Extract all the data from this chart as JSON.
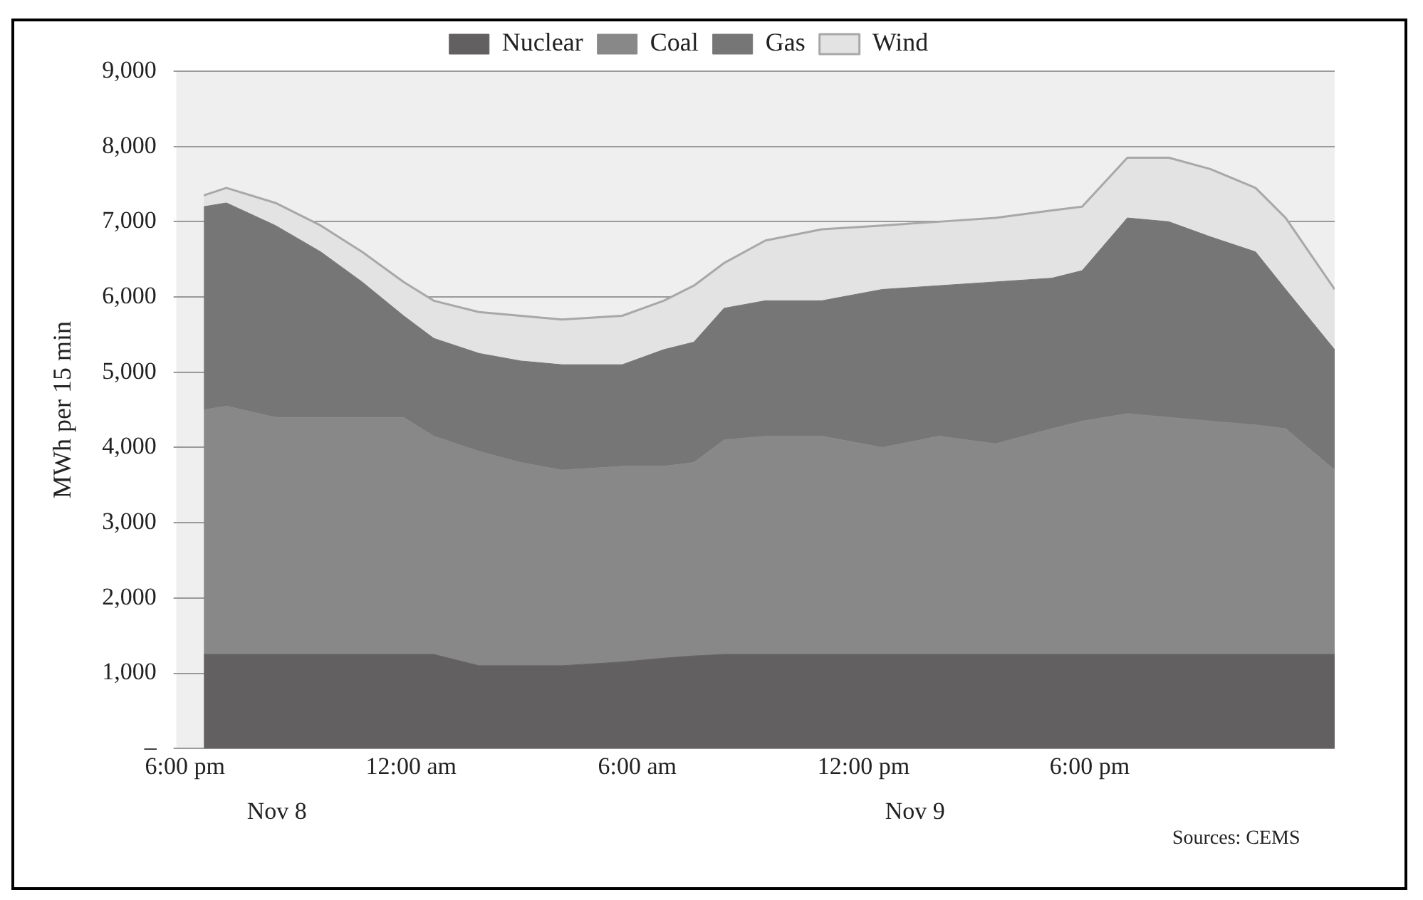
{
  "chart_data": {
    "type": "area",
    "ylabel": "MWh per 15 min",
    "stacked": true,
    "grid": "y",
    "legend": "top",
    "x": [
      "--11-08T18:30",
      "--11-08T19:06",
      "--11-08T20:24",
      "--11-08T21:36",
      "--11-08T22:42",
      "--11-08T23:48",
      "--11-09T00:36",
      "--11-09T01:48",
      "--11-09T02:54",
      "--11-09T04:00",
      "--11-09T05:36",
      "--11-09T06:42",
      "--11-09T07:30",
      "--11-09T08:18",
      "--11-09T09:24",
      "--11-09T10:54",
      "--11-09T12:30",
      "--11-09T14:00",
      "--11-09T15:30",
      "--11-09T17:00",
      "--11-09T17:48",
      "--11-09T19:00",
      "--11-09T20:06",
      "--11-09T21:12",
      "--11-09T22:24",
      "--11-09T23:12",
      "--11-10T00:30"
    ],
    "xlim": [
      "--11-08T18:00",
      "--11-10T00:30"
    ],
    "xticks": [
      {
        "value": "--11-08T18:00",
        "label": "6:00 pm"
      },
      {
        "value": "--11-09T00:00",
        "label": "12:00 am"
      },
      {
        "value": "--11-09T06:00",
        "label": "6:00 am"
      },
      {
        "value": "--11-09T12:00",
        "label": "12:00 pm"
      },
      {
        "value": "--11-09T18:00",
        "label": "6:00 pm"
      }
    ],
    "ylim": [
      0,
      9000
    ],
    "yticks": [
      {
        "value": 0,
        "label": "–"
      },
      {
        "value": 1000,
        "label": "1,000"
      },
      {
        "value": 2000,
        "label": "2,000"
      },
      {
        "value": 3000,
        "label": "3,000"
      },
      {
        "value": 4000,
        "label": "4,000"
      },
      {
        "value": 5000,
        "label": "5,000"
      },
      {
        "value": 6000,
        "label": "6,000"
      },
      {
        "value": 7000,
        "label": "7,000"
      },
      {
        "value": 8000,
        "label": "8,000"
      },
      {
        "value": 9000,
        "label": "9,000"
      }
    ],
    "series": [
      {
        "name": "Nuclear",
        "color": "#626061",
        "values": [
          1250,
          1250,
          1250,
          1250,
          1250,
          1250,
          1250,
          1100,
          1100,
          1100,
          1150,
          1200,
          1230,
          1250,
          1250,
          1250,
          1250,
          1250,
          1250,
          1250,
          1250,
          1250,
          1250,
          1250,
          1250,
          1250,
          1250
        ]
      },
      {
        "name": "Coal",
        "color": "#888888",
        "values": [
          3250,
          3300,
          3150,
          3150,
          3150,
          3150,
          2900,
          2850,
          2700,
          2600,
          2600,
          2550,
          2570,
          2850,
          2900,
          2900,
          2750,
          2900,
          2800,
          3000,
          3100,
          3200,
          3150,
          3100,
          3050,
          3000,
          2450
        ]
      },
      {
        "name": "Gas",
        "color": "#767676",
        "values": [
          2700,
          2700,
          2550,
          2200,
          1800,
          1350,
          1300,
          1300,
          1350,
          1400,
          1350,
          1550,
          1600,
          1750,
          1800,
          1800,
          2100,
          2000,
          2150,
          2000,
          2000,
          2600,
          2600,
          2450,
          2300,
          1850,
          1600
        ]
      },
      {
        "name": "Wind",
        "color": "#e3e3e3",
        "values": [
          150,
          200,
          300,
          350,
          400,
          450,
          500,
          550,
          600,
          600,
          650,
          650,
          750,
          600,
          800,
          950,
          850,
          850,
          850,
          900,
          850,
          800,
          850,
          900,
          850,
          950,
          800
        ]
      }
    ],
    "annotations": [
      "Nov 8",
      "Nov 9",
      "Sources: CEMS"
    ]
  }
}
